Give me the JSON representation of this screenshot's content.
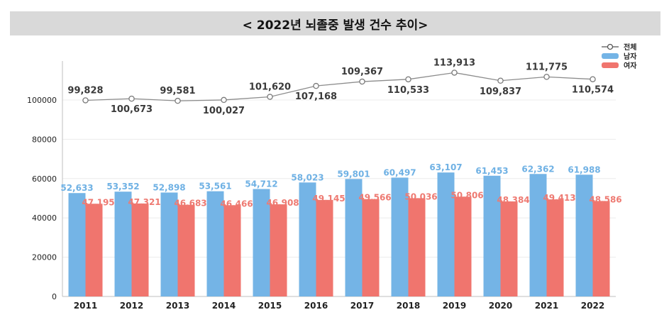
{
  "page": {
    "title": "< 2022년 뇌졸중 발생 건수 추이>"
  },
  "chart_data": {
    "type": "bar",
    "title": "< 2022년 뇌졸중 발생 건수 추이>",
    "xlabel": "",
    "ylabel": "",
    "ylim": [
      0,
      120000
    ],
    "yticks": [
      0,
      20000,
      40000,
      60000,
      80000,
      100000
    ],
    "grid": true,
    "legend_position": "top-right",
    "categories": [
      "2011",
      "2012",
      "2013",
      "2014",
      "2015",
      "2016",
      "2017",
      "2018",
      "2019",
      "2020",
      "2021",
      "2022"
    ],
    "series": [
      {
        "name": "전체",
        "type": "line",
        "color": "#8c8c8c",
        "values": [
          99828,
          100673,
          99581,
          100027,
          101620,
          107168,
          109367,
          110533,
          113913,
          109837,
          111775,
          110574
        ],
        "labels": [
          "99,828",
          "100,673",
          "99,581",
          "100,027",
          "101,620",
          "107,168",
          "109,367",
          "110,533",
          "113,913",
          "109,837",
          "111,775",
          "110,574"
        ]
      },
      {
        "name": "남자",
        "type": "bar",
        "color": "#74b4e6",
        "values": [
          52633,
          53352,
          52898,
          53561,
          54712,
          58023,
          59801,
          60497,
          63107,
          61453,
          62362,
          61988
        ],
        "labels": [
          "52,633",
          "53,352",
          "52,898",
          "53,561",
          "54,712",
          "58,023",
          "59,801",
          "60,497",
          "63,107",
          "61,453",
          "62,362",
          "61,988"
        ]
      },
      {
        "name": "여자",
        "type": "bar",
        "color": "#f0756e",
        "values": [
          47195,
          47321,
          46683,
          46466,
          46908,
          49145,
          49566,
          50036,
          50806,
          48384,
          49413,
          48586
        ],
        "labels": [
          "47,195",
          "47,321",
          "46,683",
          "46,466",
          "46,908",
          "49,145",
          "49,566",
          "50,036",
          "50,806",
          "48,384",
          "49,413",
          "48,586"
        ]
      }
    ]
  }
}
